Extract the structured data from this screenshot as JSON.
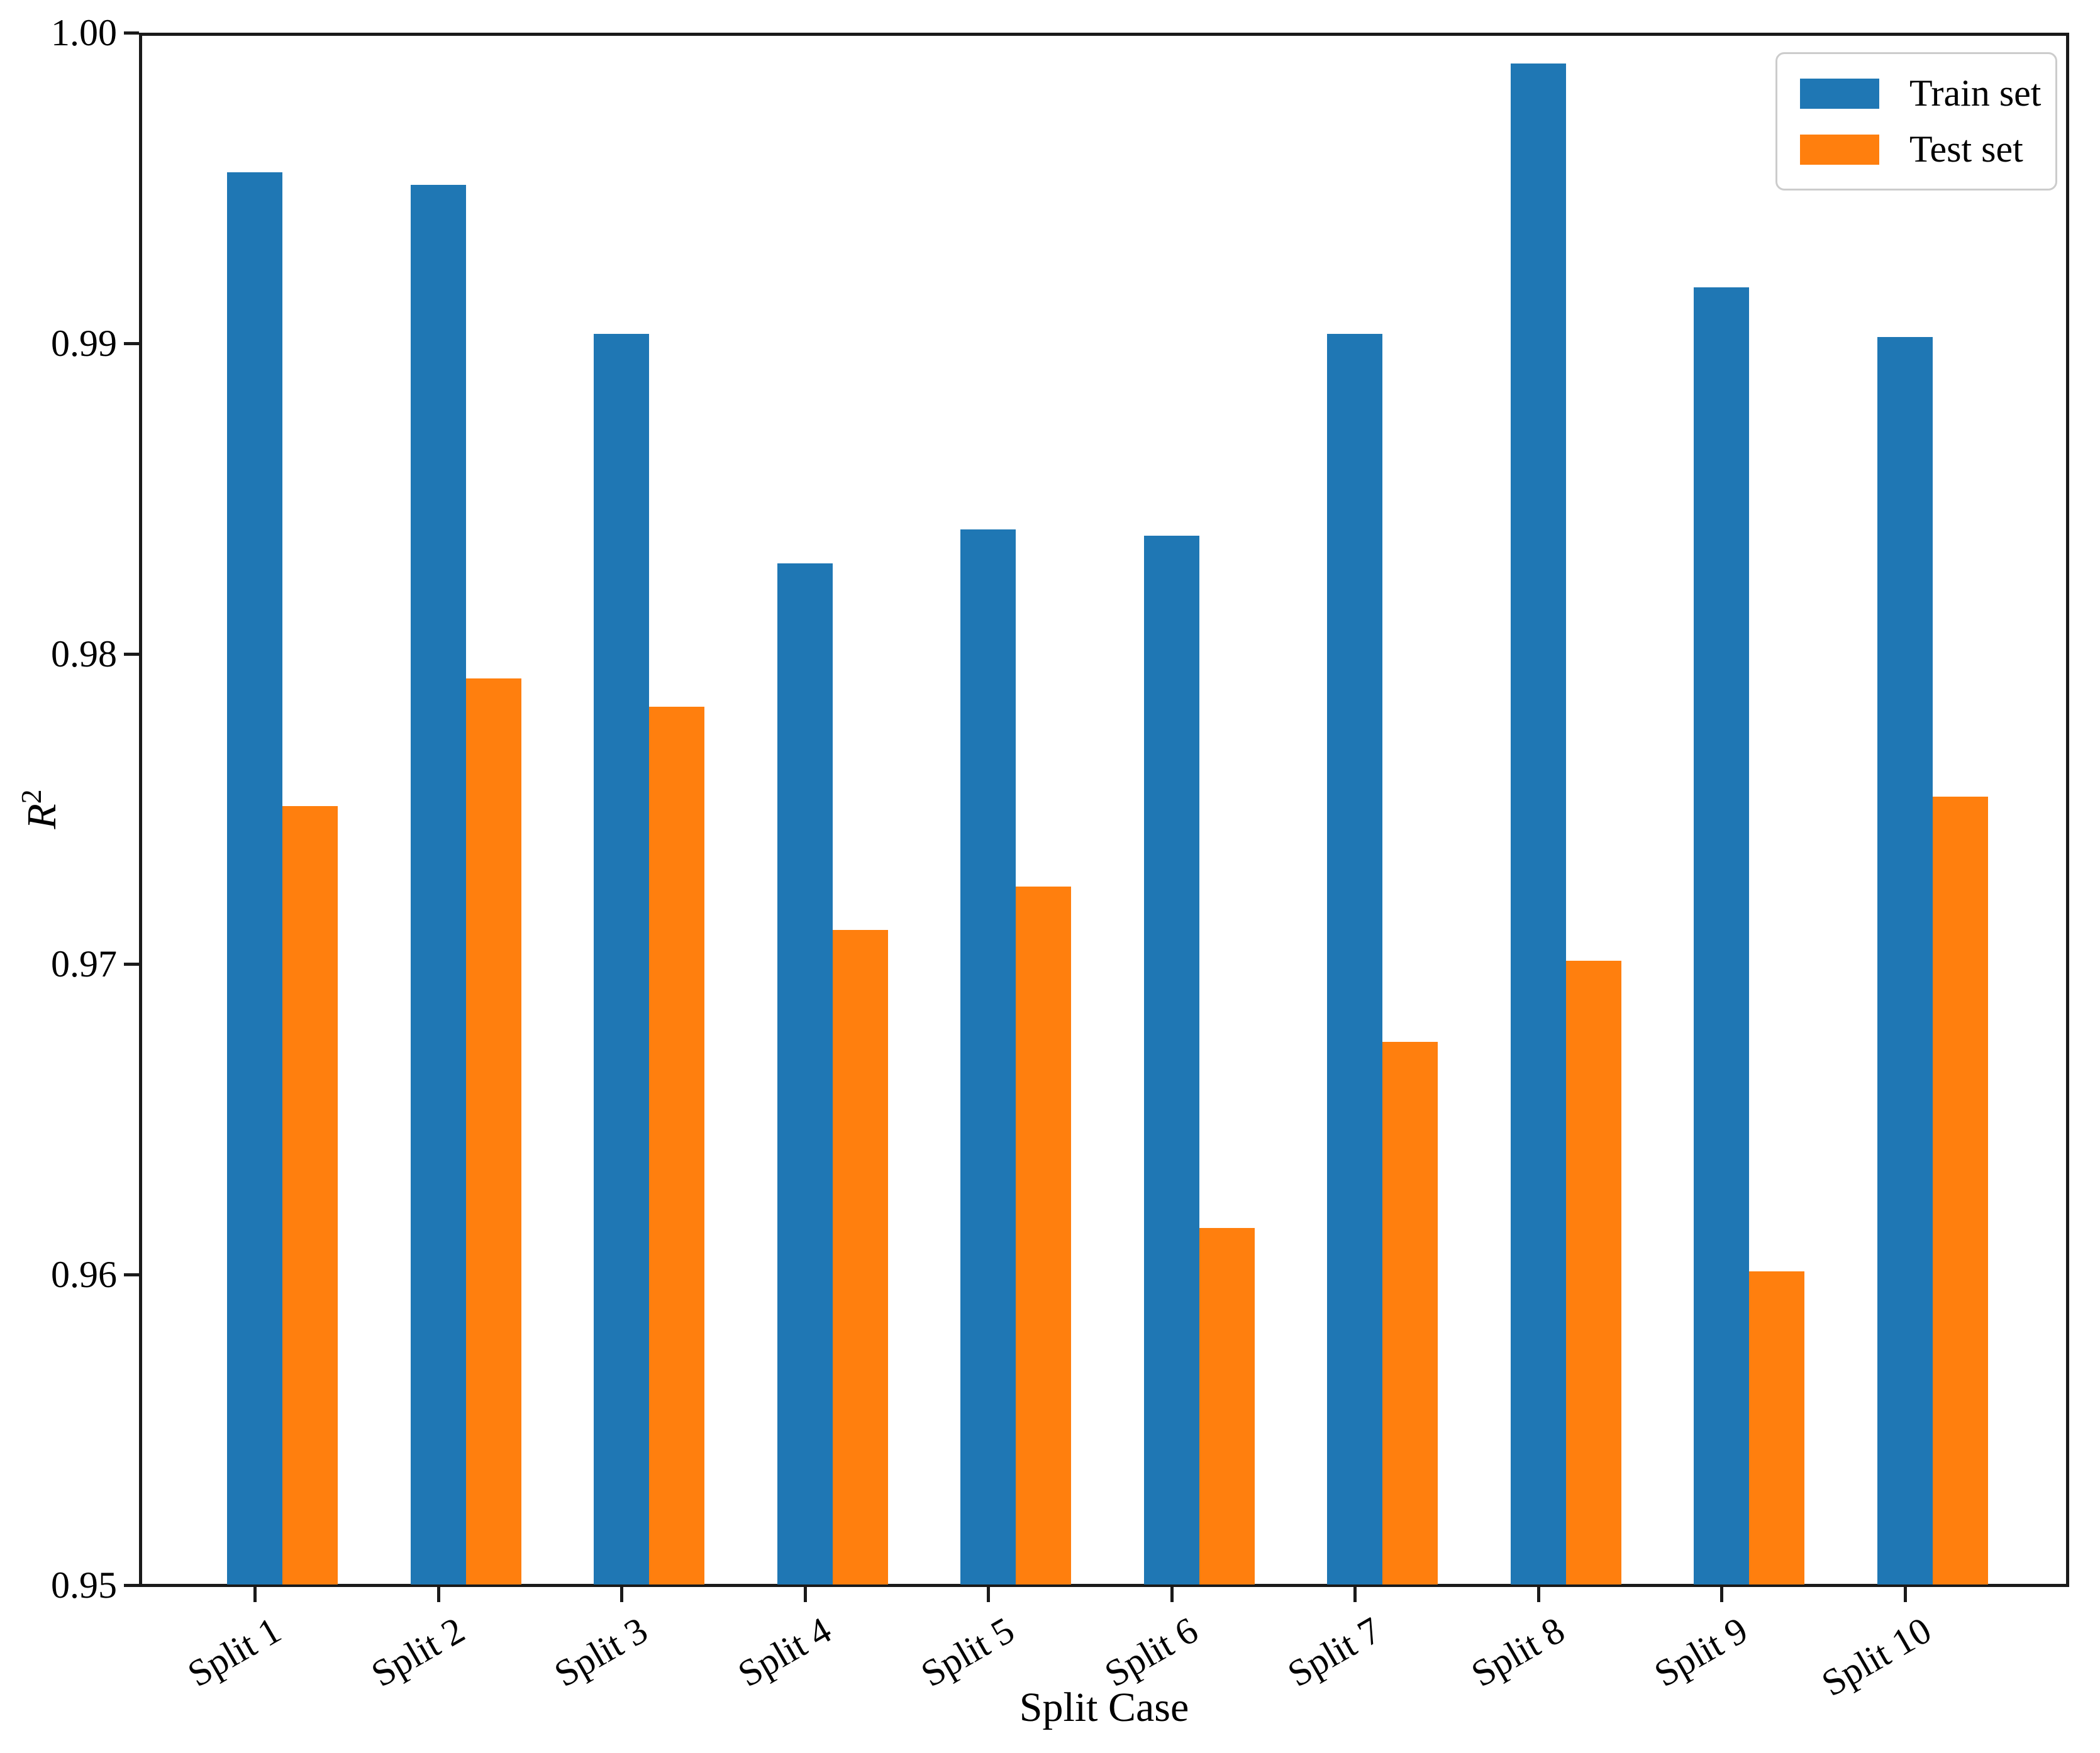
{
  "chart_data": {
    "type": "bar",
    "title": "",
    "xlabel": "Split Case",
    "ylabel_base": "R",
    "ylabel_exponent": "2",
    "ylim": [
      0.95,
      1.0
    ],
    "yticks": [
      "1.00",
      "0.99",
      "0.98",
      "0.97",
      "0.96",
      "0.95"
    ],
    "grid": false,
    "legend_position": "upper right",
    "background_color": "#ffffff",
    "axis_color": "#1a1a1a",
    "categories": [
      "Split 1",
      "Split 2",
      "Split 3",
      "Split 4",
      "Split 5",
      "Split 6",
      "Split 7",
      "Split 8",
      "Split 9",
      "Split 10"
    ],
    "series": [
      {
        "name": "Train set",
        "color": "#1f77b4",
        "values": [
          0.9955,
          0.9951,
          0.9903,
          0.9829,
          0.984,
          0.9838,
          0.9903,
          0.999,
          0.9918,
          0.9902
        ]
      },
      {
        "name": "Test set",
        "color": "#ff7f0e",
        "values": [
          0.9751,
          0.9792,
          0.9783,
          0.9711,
          0.9725,
          0.9615,
          0.9675,
          0.9701,
          0.9601,
          0.9754
        ]
      }
    ]
  }
}
